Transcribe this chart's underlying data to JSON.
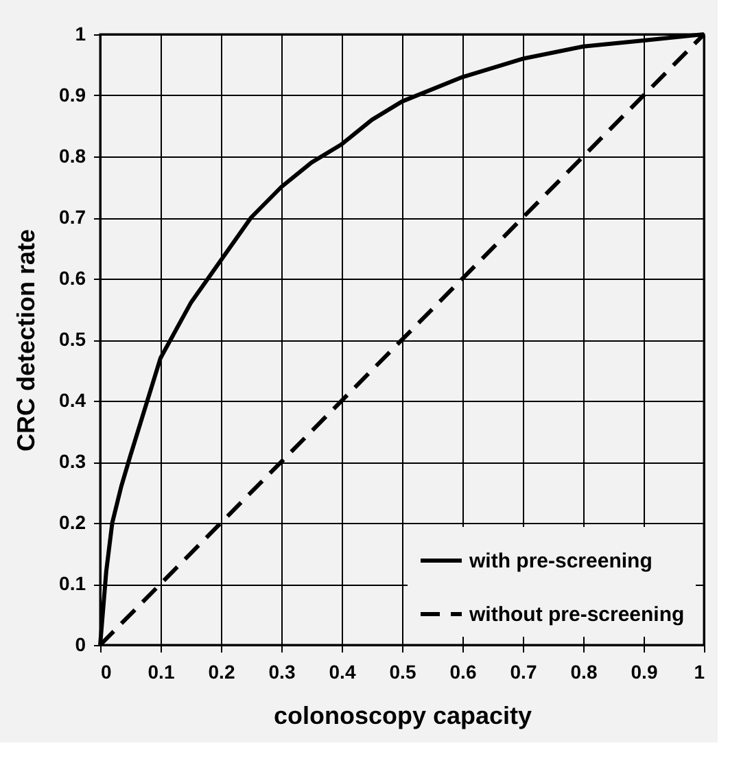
{
  "chart_data": {
    "type": "line",
    "xlabel": "colonoscopy capacity",
    "ylabel": "CRC detection rate",
    "xlim": [
      0,
      1
    ],
    "ylim": [
      0,
      1
    ],
    "xticks": [
      0,
      0.1,
      0.2,
      0.3,
      0.4,
      0.5,
      0.6,
      0.7,
      0.8,
      0.9,
      1
    ],
    "yticks": [
      0,
      0.1,
      0.2,
      0.3,
      0.4,
      0.5,
      0.6,
      0.7,
      0.8,
      0.9,
      1
    ],
    "grid": true,
    "legend": "bottom right",
    "marker": "none",
    "series": [
      {
        "name": "with pre-screening",
        "color": "#000000",
        "line_style": "solid",
        "x": [
          0,
          0.005,
          0.01,
          0.02,
          0.035,
          0.05,
          0.075,
          0.1,
          0.15,
          0.2,
          0.25,
          0.3,
          0.35,
          0.4,
          0.45,
          0.5,
          0.6,
          0.7,
          0.8,
          0.9,
          1
        ],
        "values": [
          0,
          0.06,
          0.12,
          0.2,
          0.26,
          0.31,
          0.39,
          0.47,
          0.56,
          0.63,
          0.7,
          0.75,
          0.79,
          0.82,
          0.86,
          0.89,
          0.93,
          0.96,
          0.98,
          0.99,
          1
        ]
      },
      {
        "name": "without pre-screening",
        "color": "#000000",
        "line_style": "dashed",
        "x": [
          0,
          1
        ],
        "values": [
          0,
          1
        ]
      }
    ]
  }
}
